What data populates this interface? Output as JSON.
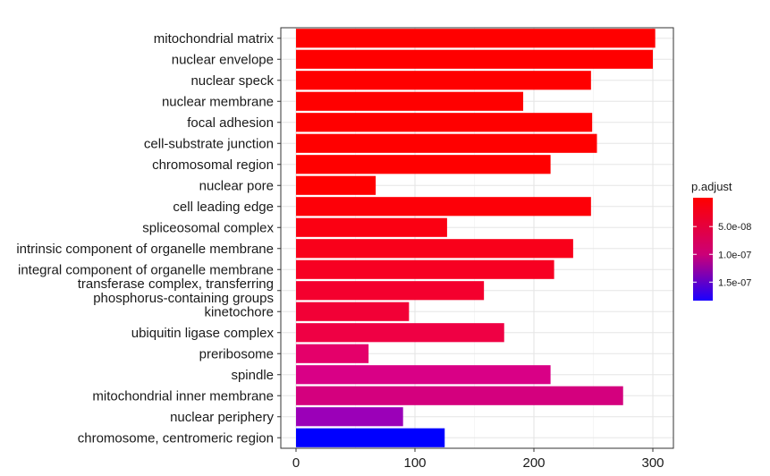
{
  "chart_data": {
    "type": "bar",
    "orientation": "horizontal",
    "title": "",
    "xlabel": "",
    "ylabel": "",
    "xlim": [
      0,
      315
    ],
    "x_ticks": [
      0,
      100,
      200,
      300
    ],
    "grid": true,
    "legend_placement": "right",
    "categories": [
      "mitochondrial matrix",
      "nuclear envelope",
      "nuclear speck",
      "nuclear membrane",
      "focal adhesion",
      "cell-substrate junction",
      "chromosomal region",
      "nuclear pore",
      "cell leading edge",
      "spliceosomal complex",
      "intrinsic component of organelle membrane",
      "integral component of organelle membrane",
      "transferase complex, transferring\nphosphorus-containing groups",
      "kinetochore",
      "ubiquitin ligase complex",
      "preribosome",
      "spindle",
      "mitochondrial inner membrane",
      "nuclear periphery",
      "chromosome, centromeric region"
    ],
    "values": [
      302,
      300,
      248,
      191,
      249,
      253,
      214,
      67,
      248,
      127,
      233,
      217,
      158,
      95,
      175,
      61,
      214,
      275,
      90,
      125
    ],
    "colors": [
      "#ff0000",
      "#ff0000",
      "#ff0000",
      "#ff0000",
      "#ff0000",
      "#ff0000",
      "#ff0000",
      "#ff0000",
      "#fd0008",
      "#fb0012",
      "#f9001a",
      "#f70022",
      "#f4002e",
      "#f20036",
      "#ef0044",
      "#e4006a",
      "#d90086",
      "#d4007e",
      "#9b00b8",
      "#0000ff"
    ],
    "legend": {
      "title": "p.adjust",
      "ticks": [
        "5.0e-08",
        "1.0e-07",
        "1.5e-07"
      ],
      "tick_fractions": [
        0.28,
        0.55,
        0.82
      ],
      "gradient_top": "#ff0000",
      "gradient_mid": "#cc0077",
      "gradient_bottom": "#1a00ff"
    }
  }
}
